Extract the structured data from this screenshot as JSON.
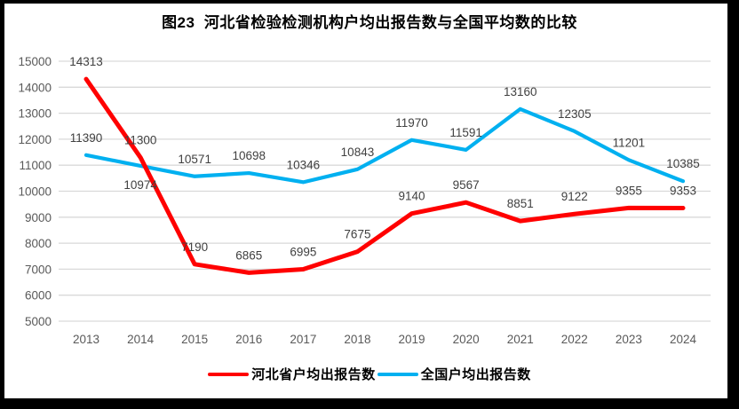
{
  "chart_data": {
    "type": "line",
    "title": "图23  河北省检验检测机构户均出报告数与全国平均数的比较",
    "categories": [
      "2013",
      "2014",
      "2015",
      "2016",
      "2017",
      "2018",
      "2019",
      "2020",
      "2021",
      "2022",
      "2023",
      "2024"
    ],
    "series": [
      {
        "name": "河北省户均出报告数",
        "color": "#FF0000",
        "values": [
          14313,
          11300,
          7190,
          6865,
          6995,
          7675,
          9140,
          9567,
          8851,
          9122,
          9355,
          9353
        ]
      },
      {
        "name": "全国户均出报告数",
        "color": "#00B0F0",
        "values": [
          11390,
          10974,
          10571,
          10698,
          10346,
          10843,
          11970,
          11591,
          13160,
          12305,
          11201,
          10385
        ],
        "labels_below": [
          1
        ]
      }
    ],
    "ylim": [
      5000,
      15000
    ],
    "ytick_step": 1000,
    "grid": "horizontal-only",
    "data_labels_shown": true,
    "legend_position": "bottom",
    "colors": {
      "gridline": "#D9D9D9",
      "axis_text": "#595959",
      "data_label": "#404040",
      "title": "#000000",
      "frame_border": "#000000",
      "background": "#FFFFFF"
    }
  }
}
